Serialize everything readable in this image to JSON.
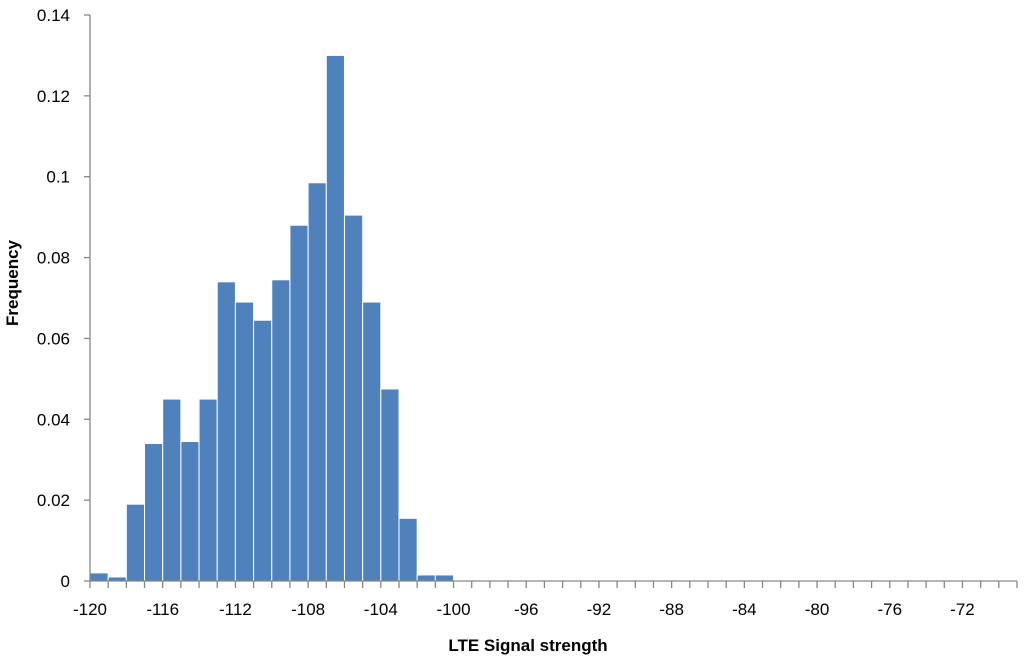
{
  "chart_data": {
    "type": "bar",
    "title": "",
    "xlabel": "LTE Signal strength",
    "ylabel": "Frequency",
    "bar_color": "#4F81BD",
    "axis_color": "#868686",
    "bin_width": 1,
    "xlim": [
      -120,
      -69
    ],
    "ylim": [
      0,
      0.14
    ],
    "x_tick_values": [
      -120,
      -116,
      -112,
      -108,
      -104,
      -100,
      -96,
      -92,
      -88,
      -84,
      -80,
      -76,
      -72
    ],
    "x_tick_labels": [
      "-120",
      "-116",
      "-112",
      "-108",
      "-104",
      "-100",
      "-96",
      "-92",
      "-88",
      "-84",
      "-80",
      "-76",
      "-72"
    ],
    "y_tick_values": [
      0,
      0.02,
      0.04,
      0.06,
      0.08,
      0.1,
      0.12,
      0.14
    ],
    "y_tick_labels": [
      "0",
      "0.02",
      "0.04",
      "0.06",
      "0.08",
      "0.1",
      "0.12",
      "0.14"
    ],
    "x": [
      -120,
      -119,
      -118,
      -117,
      -116,
      -115,
      -114,
      -113,
      -112,
      -111,
      -110,
      -109,
      -108,
      -107,
      -106,
      -105,
      -104,
      -103,
      -102,
      -101,
      -100,
      -99,
      -98,
      -97,
      -96,
      -95,
      -94,
      -93,
      -92,
      -91,
      -90,
      -89,
      -88,
      -87,
      -86,
      -85,
      -84,
      -83,
      -82,
      -81,
      -80,
      -79,
      -78,
      -77,
      -76,
      -75,
      -74,
      -73,
      -72,
      -71,
      -70
    ],
    "values": [
      0.002,
      0.001,
      0.019,
      0.034,
      0.045,
      0.0345,
      0.045,
      0.074,
      0.069,
      0.0645,
      0.0745,
      0.088,
      0.0985,
      0.13,
      0.0905,
      0.069,
      0.0475,
      0.0155,
      0.0015,
      0.0015,
      0,
      0,
      0,
      0,
      0,
      0,
      0,
      0,
      0,
      0,
      0,
      0,
      0,
      0,
      0,
      0,
      0,
      0,
      0,
      0,
      0,
      0,
      0,
      0,
      0,
      0,
      0,
      0,
      0,
      0,
      0
    ],
    "grid": false,
    "legend": "none"
  }
}
